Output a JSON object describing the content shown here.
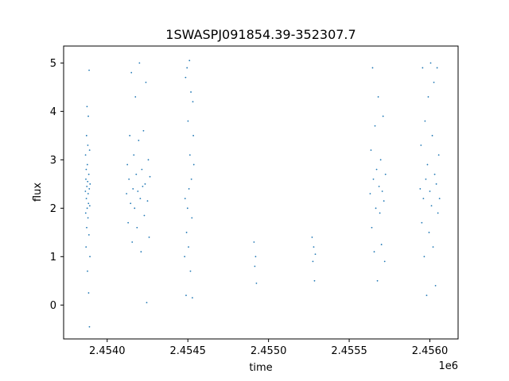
{
  "chart_data": {
    "type": "scatter",
    "title": "1SWASPJ091854.39-352307.7",
    "xlabel": "time",
    "ylabel": "flux",
    "x_offset_label": "1e6",
    "xlim": [
      2453730,
      2456175
    ],
    "ylim": [
      -0.7,
      5.35
    ],
    "x_ticks": [
      {
        "value": 2454000,
        "label": "2.4540"
      },
      {
        "value": 2454500,
        "label": "2.4545"
      },
      {
        "value": 2455000,
        "label": "2.4550"
      },
      {
        "value": 2455500,
        "label": "2.4555"
      },
      {
        "value": 2456000,
        "label": "2.4560"
      }
    ],
    "y_ticks": [
      {
        "value": 0,
        "label": "0"
      },
      {
        "value": 1,
        "label": "1"
      },
      {
        "value": 2,
        "label": "2"
      },
      {
        "value": 3,
        "label": "3"
      },
      {
        "value": 4,
        "label": "4"
      },
      {
        "value": 5,
        "label": "5"
      }
    ],
    "marker_color": "#1f77b4",
    "grid": false,
    "series": [
      {
        "points": [
          [
            2453865,
            2.35
          ],
          [
            2453866,
            3.1
          ],
          [
            2453867,
            1.9
          ],
          [
            2453868,
            2.6
          ],
          [
            2453869,
            1.2
          ],
          [
            2453870,
            2.8
          ],
          [
            2453871,
            2.2
          ],
          [
            2453872,
            3.5
          ],
          [
            2453873,
            1.6
          ],
          [
            2453874,
            2.45
          ],
          [
            2453875,
            4.1
          ],
          [
            2453876,
            2.0
          ],
          [
            2453877,
            2.9
          ],
          [
            2453878,
            0.7
          ],
          [
            2453879,
            2.55
          ],
          [
            2453880,
            3.3
          ],
          [
            2453881,
            1.8
          ],
          [
            2453882,
            2.3
          ],
          [
            2453883,
            3.9
          ],
          [
            2453884,
            2.1
          ],
          [
            2453885,
            0.25
          ],
          [
            2453886,
            2.7
          ],
          [
            2453887,
            1.45
          ],
          [
            2453888,
            4.85
          ],
          [
            2453889,
            2.4
          ],
          [
            2453890,
            -0.45
          ],
          [
            2453891,
            3.2
          ],
          [
            2453892,
            2.05
          ],
          [
            2453893,
            1.0
          ],
          [
            2453894,
            2.5
          ],
          [
            2454120,
            2.3
          ],
          [
            2454125,
            2.9
          ],
          [
            2454130,
            1.7
          ],
          [
            2454135,
            2.6
          ],
          [
            2454140,
            3.5
          ],
          [
            2454145,
            2.1
          ],
          [
            2454150,
            4.8
          ],
          [
            2454155,
            1.3
          ],
          [
            2454160,
            2.4
          ],
          [
            2454165,
            3.1
          ],
          [
            2454170,
            2.0
          ],
          [
            2454175,
            4.3
          ],
          [
            2454180,
            2.7
          ],
          [
            2454185,
            1.6
          ],
          [
            2454190,
            2.35
          ],
          [
            2454195,
            3.4
          ],
          [
            2454200,
            5.0
          ],
          [
            2454205,
            2.2
          ],
          [
            2454210,
            1.1
          ],
          [
            2454215,
            2.8
          ],
          [
            2454220,
            2.45
          ],
          [
            2454225,
            3.6
          ],
          [
            2454230,
            1.85
          ],
          [
            2454235,
            2.5
          ],
          [
            2454240,
            4.6
          ],
          [
            2454245,
            0.05
          ],
          [
            2454250,
            2.15
          ],
          [
            2454255,
            3.0
          ],
          [
            2454260,
            1.4
          ],
          [
            2454265,
            2.65
          ],
          [
            2454480,
            1.0
          ],
          [
            2454483,
            2.2
          ],
          [
            2454486,
            4.7
          ],
          [
            2454489,
            0.2
          ],
          [
            2454492,
            1.5
          ],
          [
            2454495,
            4.9
          ],
          [
            2454498,
            2.0
          ],
          [
            2454501,
            3.8
          ],
          [
            2454504,
            1.2
          ],
          [
            2454507,
            2.4
          ],
          [
            2454510,
            5.05
          ],
          [
            2454513,
            3.1
          ],
          [
            2454516,
            0.7
          ],
          [
            2454519,
            4.4
          ],
          [
            2454522,
            2.6
          ],
          [
            2454525,
            1.8
          ],
          [
            2454528,
            0.15
          ],
          [
            2454531,
            4.2
          ],
          [
            2454534,
            3.5
          ],
          [
            2454537,
            2.9
          ],
          [
            2454910,
            1.3
          ],
          [
            2454915,
            0.8
          ],
          [
            2454920,
            1.0
          ],
          [
            2454925,
            0.45
          ],
          [
            2455270,
            1.4
          ],
          [
            2455275,
            0.9
          ],
          [
            2455280,
            1.2
          ],
          [
            2455285,
            0.5
          ],
          [
            2455290,
            1.05
          ],
          [
            2455630,
            2.3
          ],
          [
            2455635,
            3.2
          ],
          [
            2455640,
            1.6
          ],
          [
            2455645,
            4.9
          ],
          [
            2455650,
            2.6
          ],
          [
            2455655,
            1.1
          ],
          [
            2455660,
            3.7
          ],
          [
            2455665,
            2.0
          ],
          [
            2455670,
            2.8
          ],
          [
            2455675,
            0.5
          ],
          [
            2455680,
            4.3
          ],
          [
            2455685,
            2.45
          ],
          [
            2455690,
            1.9
          ],
          [
            2455695,
            3.0
          ],
          [
            2455700,
            1.25
          ],
          [
            2455705,
            2.35
          ],
          [
            2455710,
            3.9
          ],
          [
            2455715,
            2.15
          ],
          [
            2455720,
            0.9
          ],
          [
            2455725,
            2.7
          ],
          [
            2455940,
            2.4
          ],
          [
            2455945,
            3.3
          ],
          [
            2455950,
            1.7
          ],
          [
            2455955,
            4.9
          ],
          [
            2455960,
            2.2
          ],
          [
            2455965,
            1.0
          ],
          [
            2455970,
            3.8
          ],
          [
            2455975,
            2.6
          ],
          [
            2455980,
            0.2
          ],
          [
            2455985,
            2.9
          ],
          [
            2455990,
            4.3
          ],
          [
            2455995,
            1.5
          ],
          [
            2456000,
            2.35
          ],
          [
            2456005,
            5.0
          ],
          [
            2456010,
            2.05
          ],
          [
            2456015,
            3.5
          ],
          [
            2456020,
            1.2
          ],
          [
            2456025,
            4.6
          ],
          [
            2456030,
            2.7
          ],
          [
            2456035,
            0.4
          ],
          [
            2456040,
            2.5
          ],
          [
            2456045,
            4.9
          ],
          [
            2456050,
            1.9
          ],
          [
            2456055,
            3.1
          ],
          [
            2456060,
            2.2
          ]
        ]
      }
    ]
  }
}
